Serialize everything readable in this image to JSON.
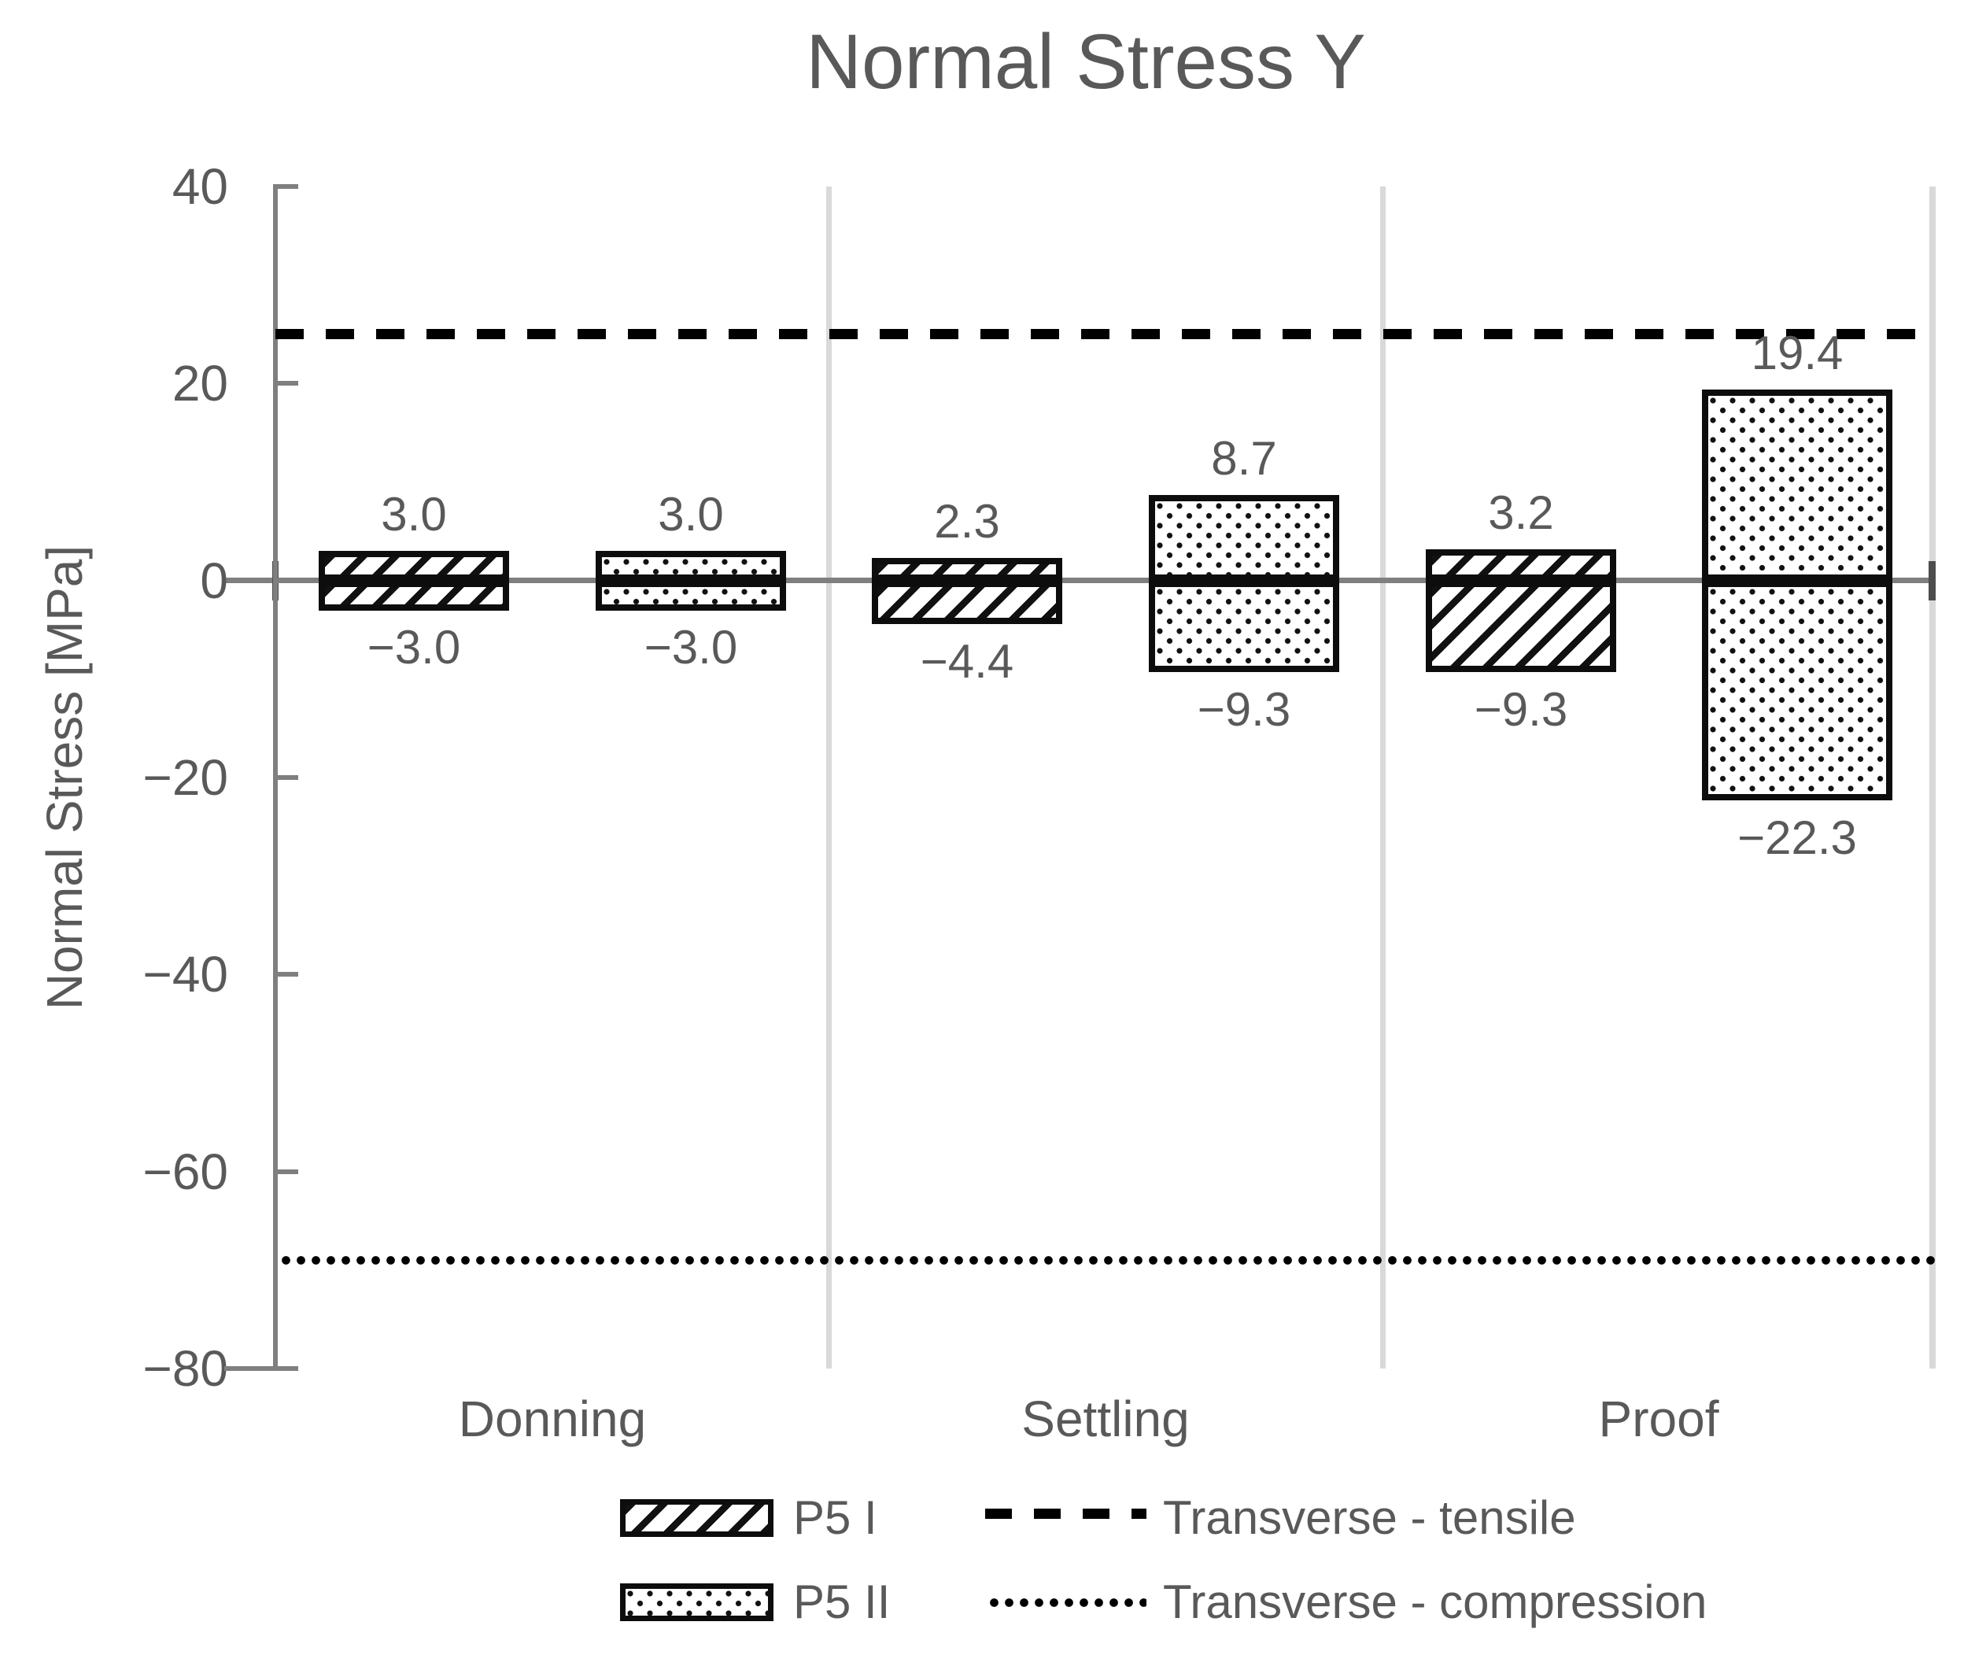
{
  "title": "Normal Stress Y",
  "chart_data": {
    "type": "bar",
    "title": "Normal Stress Y",
    "xlabel": "",
    "ylabel": "Normal Stress [MPa]",
    "ylim": [
      -80,
      40
    ],
    "ytick_step": 20,
    "yticks": [
      {
        "label": "40",
        "value": 40
      },
      {
        "label": "20",
        "value": 20
      },
      {
        "label": "0",
        "value": 0
      },
      {
        "label": "−20",
        "value": -20
      },
      {
        "label": "−40",
        "value": -40
      },
      {
        "label": "−60",
        "value": -60
      },
      {
        "label": "−80",
        "value": -80
      }
    ],
    "categories": [
      "Donning",
      "Settling",
      "Proof"
    ],
    "series": [
      {
        "name": "P5 I",
        "pattern": "diagonal-hatch",
        "values_max": [
          3.0,
          2.3,
          3.2
        ],
        "values_min": [
          -3.0,
          -4.4,
          -9.3
        ],
        "labels_max": [
          "3.0",
          "2.3",
          "3.2"
        ],
        "labels_min": [
          "−3.0",
          "−4.4",
          "−9.3"
        ]
      },
      {
        "name": "P5 II",
        "pattern": "dots",
        "values_max": [
          3.0,
          8.7,
          19.4
        ],
        "values_min": [
          -3.0,
          -9.3,
          -22.3
        ],
        "labels_max": [
          "3.0",
          "8.7",
          "19.4"
        ],
        "labels_min": [
          "−3.0",
          "−9.3",
          "−22.3"
        ]
      }
    ],
    "reference_lines": [
      {
        "name": "Transverse - tensile",
        "style": "dashed",
        "value": 25
      },
      {
        "name": "Transverse - compression",
        "style": "dotted",
        "value": -69
      }
    ],
    "legend_position": "bottom",
    "grid": "vertical-category-separators"
  },
  "colors": {
    "text": "#595959",
    "axis": "#7f7f7f",
    "separator": "#d9d9d9",
    "bar_border": "#0d0d0d",
    "bar_fill": "#ffffff",
    "pattern_ink": "#111111",
    "reference_line": "#000000",
    "background": "#ffffff"
  }
}
